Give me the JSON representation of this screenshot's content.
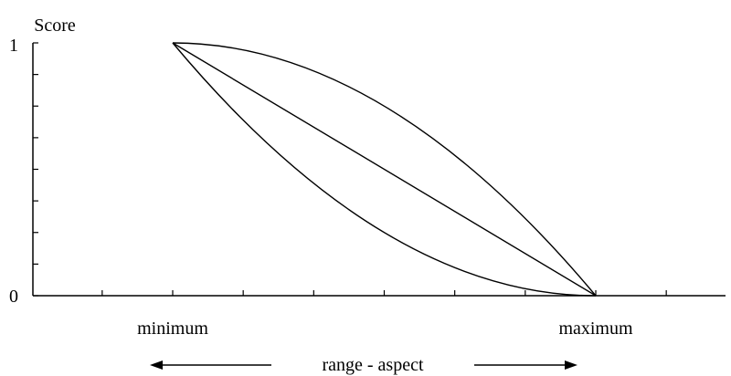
{
  "chart_data": {
    "type": "line",
    "ylabel": "Score",
    "ytick_labels": [
      "1",
      "0"
    ],
    "ylim": [
      0,
      1
    ],
    "xlim": [
      -0.5,
      1.5
    ],
    "x_markers": [
      {
        "x": 0,
        "label": "minimum"
      },
      {
        "x": 1,
        "label": "maximum"
      }
    ],
    "range_label": "range - aspect",
    "series": [
      {
        "x": [
          0,
          0.25,
          0.5,
          0.75,
          1
        ],
        "y": [
          1,
          0.9375,
          0.75,
          0.4375,
          0
        ]
      },
      {
        "x": [
          0,
          0.25,
          0.5,
          0.75,
          1
        ],
        "y": [
          1,
          0.75,
          0.5,
          0.25,
          0
        ]
      },
      {
        "x": [
          0,
          0.25,
          0.5,
          0.75,
          1
        ],
        "y": [
          1,
          0.5625,
          0.25,
          0.0625,
          0
        ]
      }
    ],
    "grid": false
  }
}
